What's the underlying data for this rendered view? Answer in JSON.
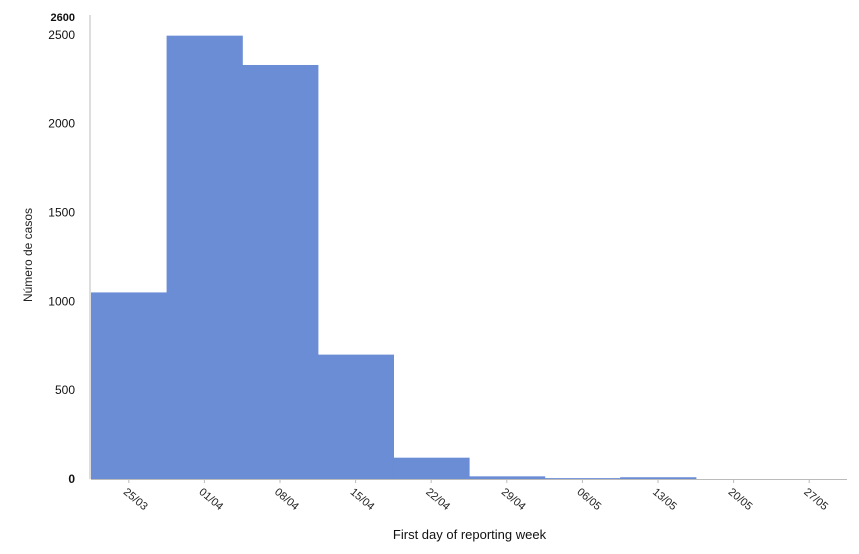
{
  "chart_data": {
    "type": "bar",
    "categories": [
      "25/03",
      "01/04",
      "08/04",
      "15/04",
      "22/04",
      "29/04",
      "06/05",
      "13/05",
      "20/05",
      "27/05"
    ],
    "values": [
      1050,
      2495,
      2330,
      700,
      120,
      15,
      5,
      10,
      0,
      0
    ],
    "title": "",
    "xlabel": "First day of reporting week",
    "ylabel": "Número de casos",
    "ylim": [
      0,
      2600
    ],
    "yticks": [
      0,
      500,
      1000,
      1500,
      2000,
      2500,
      2600
    ],
    "bar_color": "#6b8dd6",
    "grid": false,
    "legend": "none"
  }
}
